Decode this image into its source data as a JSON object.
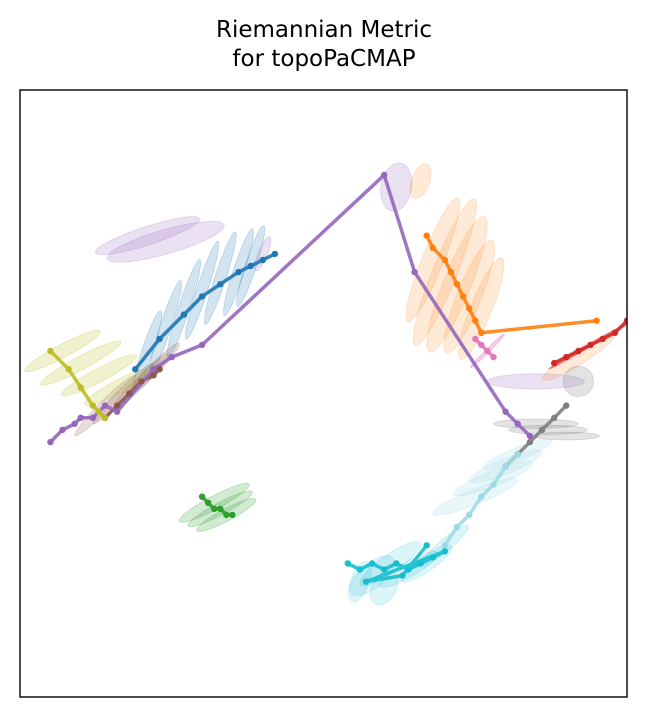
{
  "chart_data": {
    "type": "scatter",
    "title_lines": [
      "Riemannian Metric",
      "for topoPaCMAP"
    ],
    "xlabel": "",
    "ylabel": "",
    "xlim": [
      0,
      100
    ],
    "ylim": [
      0,
      100
    ],
    "axes_ticks": "none",
    "grid": false,
    "series": [
      {
        "color": "#1f77b4",
        "ellipse_alpha": 0.2,
        "points": [
          [
            19,
            54
          ],
          [
            23,
            59
          ],
          [
            27,
            63
          ],
          [
            30,
            66
          ],
          [
            33,
            68
          ],
          [
            36,
            70
          ],
          [
            38,
            71
          ],
          [
            40,
            72
          ],
          [
            42,
            73
          ]
        ],
        "ellipses": [
          [
            21,
            57,
            14,
            1.8,
            -72
          ],
          [
            24,
            61,
            16,
            1.8,
            -72
          ],
          [
            27,
            64,
            17,
            1.8,
            -72
          ],
          [
            30,
            67,
            17,
            1.8,
            -72
          ],
          [
            33,
            69,
            16,
            1.8,
            -72
          ],
          [
            36,
            70,
            15,
            1.8,
            -72
          ],
          [
            38,
            71,
            14,
            1.8,
            -72
          ]
        ]
      },
      {
        "color": "#8c564b",
        "ellipse_alpha": 0.2,
        "points": [
          [
            14,
            46
          ],
          [
            16,
            48
          ],
          [
            18,
            50
          ],
          [
            20,
            52
          ],
          [
            22,
            53
          ],
          [
            23,
            54
          ]
        ],
        "ellipses": [
          [
            14,
            48,
            14,
            1.7,
            -45
          ],
          [
            17,
            50,
            14,
            1.7,
            -45
          ],
          [
            20,
            52,
            13,
            1.7,
            -45
          ],
          [
            22,
            54,
            12,
            1.7,
            -45
          ]
        ]
      },
      {
        "color": "#bcbd22",
        "ellipse_alpha": 0.22,
        "points": [
          [
            5,
            57
          ],
          [
            8,
            54
          ],
          [
            10,
            51
          ],
          [
            12,
            48
          ],
          [
            13,
            47
          ],
          [
            14,
            46
          ]
        ],
        "ellipses": [
          [
            7,
            57,
            14,
            2.2,
            -28
          ],
          [
            10,
            55,
            15,
            2.2,
            -28
          ],
          [
            13,
            53,
            14,
            2.2,
            -28
          ],
          [
            16,
            51,
            12,
            2.2,
            -28
          ]
        ]
      },
      {
        "color": "#9467bd",
        "ellipse_alpha": 0.2,
        "points": [
          [
            5,
            42
          ],
          [
            7,
            44
          ],
          [
            9,
            45
          ],
          [
            10,
            46
          ],
          [
            12,
            46
          ],
          [
            14,
            48
          ],
          [
            16,
            47
          ],
          [
            22,
            54
          ],
          [
            25,
            56
          ],
          [
            30,
            58
          ],
          [
            60,
            86
          ],
          [
            65,
            70
          ],
          [
            80,
            47
          ],
          [
            82,
            45
          ],
          [
            84,
            43
          ]
        ],
        "ellipses": [
          [
            21,
            76,
            18,
            3,
            -18
          ],
          [
            24,
            75,
            20,
            4,
            -16
          ],
          [
            40,
            73,
            6,
            1.5,
            -68
          ],
          [
            85,
            52,
            16,
            2.5,
            0
          ],
          [
            62,
            84,
            8,
            5,
            -80
          ]
        ]
      },
      {
        "color": "#2ca02c",
        "ellipse_alpha": 0.22,
        "points": [
          [
            30,
            33
          ],
          [
            31,
            32
          ],
          [
            32,
            31
          ],
          [
            33,
            31
          ],
          [
            34,
            30
          ],
          [
            35,
            30
          ]
        ],
        "ellipses": [
          [
            32,
            32,
            13,
            2.2,
            -28
          ],
          [
            33,
            31,
            12,
            2,
            -28
          ],
          [
            34,
            30,
            11,
            2,
            -28
          ]
        ]
      },
      {
        "color": "#ff7f0e",
        "ellipse_alpha": 0.16,
        "points": [
          [
            67,
            76
          ],
          [
            68,
            74
          ],
          [
            70,
            72
          ],
          [
            71,
            70
          ],
          [
            72,
            68
          ],
          [
            73,
            66
          ],
          [
            74,
            64
          ],
          [
            75,
            62
          ],
          [
            76,
            60
          ],
          [
            95,
            62
          ]
        ],
        "ellipses": [
          [
            68,
            72,
            22,
            3.5,
            -68
          ],
          [
            70,
            70,
            26,
            4,
            -68
          ],
          [
            72,
            68,
            24,
            4.5,
            -68
          ],
          [
            74,
            66,
            20,
            4,
            -68
          ],
          [
            76,
            64,
            18,
            3.5,
            -68
          ],
          [
            66,
            85,
            6,
            3,
            -70
          ],
          [
            92,
            56,
            14,
            2.5,
            -32
          ]
        ]
      },
      {
        "color": "#e377c2",
        "ellipse_alpha": 0.35,
        "points": [
          [
            75,
            59
          ],
          [
            76,
            58
          ],
          [
            77,
            57
          ],
          [
            78,
            56
          ]
        ],
        "ellipses": [
          [
            77,
            57,
            8,
            0.6,
            -45
          ]
        ]
      },
      {
        "color": "#d62728",
        "ellipse_alpha": 0.45,
        "points": [
          [
            88,
            55
          ],
          [
            90,
            56
          ],
          [
            92,
            57
          ],
          [
            94,
            58
          ],
          [
            96,
            59
          ],
          [
            98,
            60
          ],
          [
            100,
            62
          ]
        ],
        "ellipses": [
          [
            94,
            58,
            16,
            0.5,
            -30
          ]
        ]
      },
      {
        "color": "#7f7f7f",
        "ellipse_alpha": 0.22,
        "points": [
          [
            80,
            38
          ],
          [
            82,
            40
          ],
          [
            84,
            42
          ],
          [
            86,
            44
          ],
          [
            88,
            46
          ],
          [
            90,
            48
          ]
        ],
        "ellipses": [
          [
            85,
            45,
            14,
            1.5,
            0
          ],
          [
            87,
            44,
            13,
            1.5,
            0
          ],
          [
            90,
            43,
            11,
            1.3,
            0
          ],
          [
            92,
            52,
            5,
            5,
            0
          ]
        ]
      },
      {
        "color": "#9edae5",
        "ellipse_alpha": 0.22,
        "points": [
          [
            70,
            25
          ],
          [
            72,
            28
          ],
          [
            74,
            30
          ],
          [
            76,
            33
          ],
          [
            78,
            35
          ],
          [
            80,
            38
          ],
          [
            82,
            40
          ]
        ],
        "ellipses": [
          [
            75,
            33,
            15,
            2.5,
            -22
          ],
          [
            78,
            36,
            14,
            2.5,
            -22
          ],
          [
            80,
            38,
            13,
            2.5,
            -22
          ],
          [
            82,
            40,
            12,
            2.2,
            -22
          ]
        ]
      },
      {
        "color": "#17becf",
        "ellipse_alpha": 0.15,
        "points": [
          [
            54,
            22
          ],
          [
            56,
            21
          ],
          [
            58,
            22
          ],
          [
            60,
            21
          ],
          [
            62,
            22
          ],
          [
            64,
            21
          ],
          [
            66,
            22
          ],
          [
            68,
            23
          ],
          [
            70,
            24
          ],
          [
            57,
            19
          ],
          [
            63,
            20
          ],
          [
            67,
            25
          ]
        ],
        "ellipses": [
          [
            58,
            20,
            9,
            4,
            -40
          ],
          [
            61,
            22,
            12,
            3,
            -35
          ],
          [
            64,
            21,
            11,
            2.5,
            -30
          ],
          [
            67,
            22,
            10,
            2.5,
            -35
          ],
          [
            70,
            25,
            10,
            2,
            -40
          ],
          [
            56,
            19,
            7,
            3,
            -70
          ],
          [
            60,
            18,
            6,
            4,
            -60
          ]
        ]
      }
    ]
  }
}
